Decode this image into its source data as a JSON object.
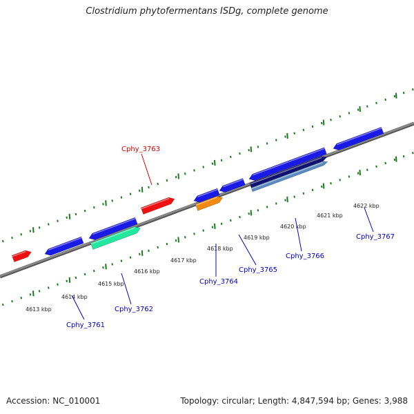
{
  "title": "Clostridium phytofermentans ISDg, complete genome",
  "footer": {
    "accession": "Accession: NC_010001",
    "summary": "Topology: circular; Length: 4,847,594 bp; Genes: 3,988"
  },
  "scale_labels": [
    "4613 kbp",
    "4614 kbp",
    "4615 kbp",
    "4616 kbp",
    "4617 kbp",
    "4618 kbp",
    "4619 kbp",
    "4620 kbp",
    "4621 kbp",
    "4622 kbp"
  ],
  "gene_labels": [
    {
      "id": "cphy3763",
      "text": "Cphy_3763",
      "color": "#d40000"
    },
    {
      "id": "cphy3761",
      "text": "Cphy_3761",
      "color": "#0000c0"
    },
    {
      "id": "cphy3762",
      "text": "Cphy_3762",
      "color": "#0000c0"
    },
    {
      "id": "cphy3764",
      "text": "Cphy_3764",
      "color": "#0000c0"
    },
    {
      "id": "cphy3765",
      "text": "Cphy_3765",
      "color": "#0000c0"
    },
    {
      "id": "cphy3766",
      "text": "Cphy_3766",
      "color": "#0000c0"
    },
    {
      "id": "cphy3767",
      "text": "Cphy_3767",
      "color": "#0000c0"
    }
  ],
  "colors": {
    "backbone": "#8a8a8a",
    "tick": "#1a7a1a",
    "red_feature": "#ee1111",
    "blue_feature": "#1a1ae6",
    "green_feature": "#22e8a0",
    "orange_feature": "#f08a10",
    "navy_feature": "#101070",
    "steel_feature": "#5a8ac0"
  }
}
